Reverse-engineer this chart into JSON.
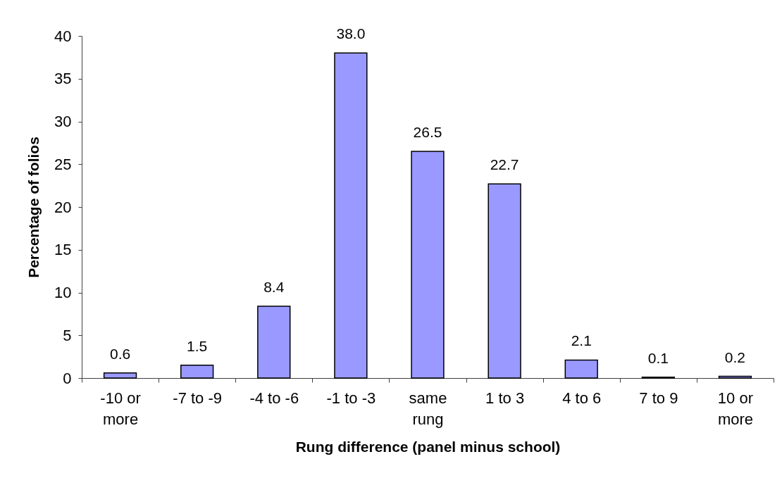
{
  "chart_data": {
    "type": "bar",
    "xlabel": "Rung difference (panel minus school)",
    "ylabel": "Percentage of folios",
    "categories": [
      "-10 or more",
      "-7 to -9",
      "-4 to -6",
      "-1 to -3",
      "same rung",
      "1 to 3",
      "4 to 6",
      "7 to 9",
      "10 or more"
    ],
    "values": [
      0.6,
      1.5,
      8.4,
      38.0,
      26.5,
      22.7,
      2.1,
      0.1,
      0.2
    ],
    "value_labels": [
      "0.6",
      "1.5",
      "8.4",
      "38.0",
      "26.5",
      "22.7",
      "2.1",
      "0.1",
      "0.2"
    ],
    "color": "#9999ff",
    "ylim": [
      0,
      40
    ],
    "yticks": [
      0,
      5,
      10,
      15,
      20,
      25,
      30,
      35,
      40
    ]
  }
}
